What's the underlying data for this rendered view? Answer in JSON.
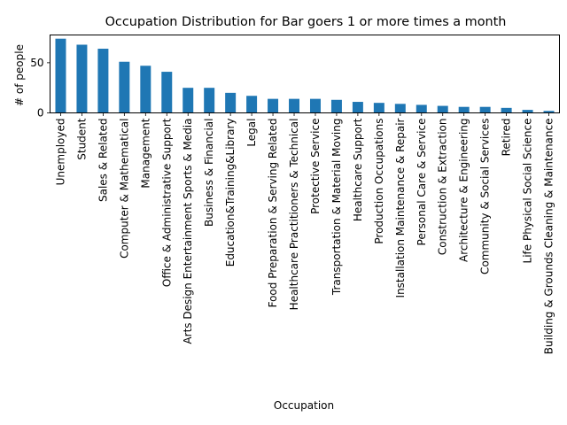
{
  "chart_data": {
    "type": "bar",
    "title": "Occupation Distribution for Bar goers 1 or more times a month",
    "xlabel": "Occupation",
    "ylabel": "# of people",
    "ylim": [
      0,
      77.7
    ],
    "yticks": [
      0,
      50
    ],
    "grid": false,
    "legend": "none",
    "bar_color": "#1f77b4",
    "categories": [
      "Unemployed",
      "Student",
      "Sales & Related",
      "Computer & Mathematical",
      "Management",
      "Office & Administrative Support",
      "Arts Design Entertainment Sports & Media",
      "Business & Financial",
      "Education&Training&Library",
      "Legal",
      "Food Preparation & Serving Related",
      "Healthcare Practitioners & Technical",
      "Protective Service",
      "Transportation & Material Moving",
      "Healthcare Support",
      "Production Occupations",
      "Installation Maintenance & Repair",
      "Personal Care & Service",
      "Construction & Extraction",
      "Architecture & Engineering",
      "Community & Social Services",
      "Retired",
      "Life Physical Social Science",
      "Building & Grounds Cleaning & Maintenance"
    ],
    "values": [
      74,
      68,
      64,
      51,
      47,
      41,
      25,
      25,
      20,
      17,
      14,
      14,
      14,
      13,
      11,
      10,
      9,
      8,
      7,
      6,
      6,
      5,
      3,
      2
    ]
  }
}
